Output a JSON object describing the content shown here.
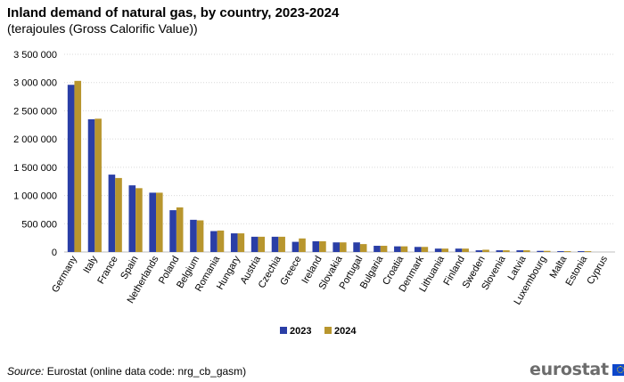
{
  "header": {
    "title": "Inland demand of natural gas, by country, 2023-2024",
    "subtitle": "(terajoules (Gross Calorific Value))"
  },
  "footer": {
    "source_label": "Source:",
    "source_text": " Eurostat (online data code: nrg_cb_gasm)",
    "logo_text": "eurostat"
  },
  "colors": {
    "series_2023": "#2a3ea6",
    "series_2024": "#b8962e",
    "grid": "#d9d9d9"
  },
  "chart_data": {
    "type": "bar",
    "title": "Inland demand of natural gas, by country, 2023-2024",
    "subtitle": "(terajoules (Gross Calorific Value))",
    "xlabel": "",
    "ylabel": "",
    "ylim": [
      0,
      3500000
    ],
    "yticks": [
      0,
      500000,
      1000000,
      1500000,
      2000000,
      2500000,
      3000000,
      3500000
    ],
    "ytick_labels": [
      "0",
      "500 000",
      "1 000 000",
      "1 500 000",
      "2 000 000",
      "2 500 000",
      "3 000 000",
      "3 500 000"
    ],
    "grid": true,
    "legend_position": "bottom",
    "categories": [
      "Germany",
      "Italy",
      "France",
      "Spain",
      "Netherlands",
      "Poland",
      "Belgium",
      "Romania",
      "Hungary",
      "Austria",
      "Czechia",
      "Greece",
      "Ireland",
      "Slovakia",
      "Portugal",
      "Bulgaria",
      "Croatia",
      "Denmark",
      "Lithuania",
      "Finland",
      "Sweden",
      "Slovenia",
      "Latvia",
      "Luxembourg",
      "Malta",
      "Estonia",
      "Cyprus"
    ],
    "series": [
      {
        "name": "2023",
        "color": "#2a3ea6",
        "values": [
          2960000,
          2350000,
          1370000,
          1180000,
          1050000,
          740000,
          570000,
          370000,
          330000,
          270000,
          270000,
          180000,
          190000,
          170000,
          170000,
          110000,
          100000,
          90000,
          60000,
          60000,
          30000,
          30000,
          30000,
          20000,
          15000,
          15000,
          0
        ]
      },
      {
        "name": "2024",
        "color": "#b8962e",
        "values": [
          3030000,
          2360000,
          1310000,
          1130000,
          1050000,
          790000,
          560000,
          380000,
          330000,
          270000,
          270000,
          240000,
          190000,
          170000,
          140000,
          110000,
          100000,
          90000,
          60000,
          60000,
          40000,
          30000,
          30000,
          20000,
          15000,
          15000,
          0
        ]
      }
    ]
  }
}
